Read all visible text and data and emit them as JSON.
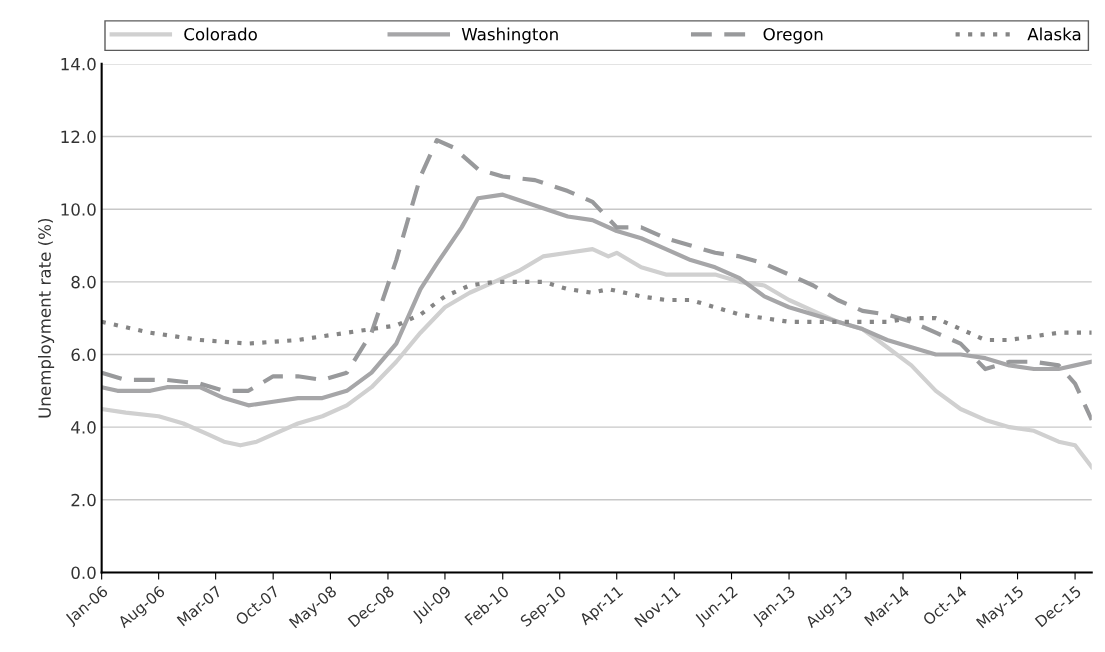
{
  "chart_data": {
    "type": "line",
    "ylabel": "Unemployment rate (%)",
    "xlim": [
      "2006-01",
      "2016-02"
    ],
    "xticks": [
      {
        "value": "2006-01",
        "label": "Jan-06"
      },
      {
        "value": "2006-08",
        "label": "Aug-06"
      },
      {
        "value": "2007-03",
        "label": "Mar-07"
      },
      {
        "value": "2007-10",
        "label": "Oct-07"
      },
      {
        "value": "2008-05",
        "label": "May-08"
      },
      {
        "value": "2008-12",
        "label": "Dec-08"
      },
      {
        "value": "2009-07",
        "label": "Jul-09"
      },
      {
        "value": "2010-02",
        "label": "Feb-10"
      },
      {
        "value": "2010-09",
        "label": "Sep-10"
      },
      {
        "value": "2011-04",
        "label": "Apr-11"
      },
      {
        "value": "2011-11",
        "label": "Nov-11"
      },
      {
        "value": "2012-06",
        "label": "Jun-12"
      },
      {
        "value": "2013-01",
        "label": "Jan-13"
      },
      {
        "value": "2013-08",
        "label": "Aug-13"
      },
      {
        "value": "2014-03",
        "label": "Mar-14"
      },
      {
        "value": "2014-10",
        "label": "Oct-14"
      },
      {
        "value": "2015-05",
        "label": "May-15"
      },
      {
        "value": "2015-12",
        "label": "Dec-15"
      }
    ],
    "ylim": [
      0,
      14
    ],
    "yticks": [
      {
        "value": 0,
        "label": "0.0"
      },
      {
        "value": 2,
        "label": "2.0"
      },
      {
        "value": 4,
        "label": "4.0"
      },
      {
        "value": 6,
        "label": "6.0"
      },
      {
        "value": 8,
        "label": "8.0"
      },
      {
        "value": 10,
        "label": "10.0"
      },
      {
        "value": 12,
        "label": "12.0"
      },
      {
        "value": 14,
        "label": "14.0"
      }
    ],
    "grid": "y",
    "legend": "top",
    "marker": "none",
    "series": [
      {
        "name": "Colorado",
        "color": "#d0d0d0",
        "line_style": "solid",
        "x": [
          "2006-01",
          "2006-04",
          "2006-08",
          "2006-11",
          "2007-02",
          "2007-04",
          "2007-06",
          "2007-08",
          "2007-10",
          "2008-01",
          "2008-04",
          "2008-07",
          "2008-10",
          "2009-01",
          "2009-04",
          "2009-07",
          "2009-10",
          "2010-01",
          "2010-04",
          "2010-07",
          "2010-10",
          "2011-01",
          "2011-03",
          "2011-04",
          "2011-07",
          "2011-10",
          "2012-01",
          "2012-04",
          "2012-07",
          "2012-10",
          "2013-01",
          "2013-04",
          "2013-07",
          "2013-10",
          "2014-01",
          "2014-04",
          "2014-07",
          "2014-10",
          "2015-01",
          "2015-04",
          "2015-07",
          "2015-10",
          "2015-12",
          "2016-02"
        ],
        "values": [
          4.5,
          4.4,
          4.3,
          4.1,
          3.8,
          3.6,
          3.5,
          3.6,
          3.8,
          4.1,
          4.3,
          4.6,
          5.1,
          5.8,
          6.6,
          7.3,
          7.7,
          8.0,
          8.3,
          8.7,
          8.8,
          8.9,
          8.7,
          8.8,
          8.4,
          8.2,
          8.2,
          8.2,
          8.0,
          7.9,
          7.5,
          7.2,
          6.9,
          6.7,
          6.2,
          5.7,
          5.0,
          4.5,
          4.2,
          4.0,
          3.9,
          3.6,
          3.5,
          2.9
        ]
      },
      {
        "name": "Washington",
        "color": "#a6a6a8",
        "line_style": "solid",
        "x": [
          "2006-01",
          "2006-03",
          "2006-07",
          "2006-09",
          "2007-01",
          "2007-04",
          "2007-07",
          "2007-10",
          "2008-01",
          "2008-04",
          "2008-07",
          "2008-10",
          "2009-01",
          "2009-04",
          "2009-06",
          "2009-09",
          "2009-11",
          "2010-02",
          "2010-06",
          "2010-10",
          "2011-01",
          "2011-04",
          "2011-07",
          "2011-10",
          "2012-01",
          "2012-04",
          "2012-07",
          "2012-10",
          "2013-01",
          "2013-04",
          "2013-07",
          "2013-10",
          "2014-01",
          "2014-04",
          "2014-07",
          "2014-10",
          "2015-01",
          "2015-04",
          "2015-07",
          "2015-10",
          "2015-12",
          "2016-02"
        ],
        "values": [
          5.1,
          5.0,
          5.0,
          5.1,
          5.1,
          4.8,
          4.6,
          4.7,
          4.8,
          4.8,
          5.0,
          5.5,
          6.3,
          7.8,
          8.5,
          9.5,
          10.3,
          10.4,
          10.1,
          9.8,
          9.7,
          9.4,
          9.2,
          8.9,
          8.6,
          8.4,
          8.1,
          7.6,
          7.3,
          7.1,
          6.9,
          6.7,
          6.4,
          6.2,
          6.0,
          6.0,
          5.9,
          5.7,
          5.6,
          5.6,
          5.7,
          5.8
        ]
      },
      {
        "name": "Oregon",
        "color": "#98999b",
        "line_style": "dashed",
        "x": [
          "2006-01",
          "2006-04",
          "2006-09",
          "2007-01",
          "2007-04",
          "2007-07",
          "2007-10",
          "2008-01",
          "2008-04",
          "2008-07",
          "2008-10",
          "2009-01",
          "2009-04",
          "2009-06",
          "2009-08",
          "2009-11",
          "2010-02",
          "2010-06",
          "2010-10",
          "2011-01",
          "2011-04",
          "2011-07",
          "2011-10",
          "2012-01",
          "2012-04",
          "2012-07",
          "2012-10",
          "2013-01",
          "2013-04",
          "2013-07",
          "2013-10",
          "2014-01",
          "2014-04",
          "2014-07",
          "2014-10",
          "2015-01",
          "2015-04",
          "2015-07",
          "2015-10",
          "2015-12",
          "2016-02"
        ],
        "values": [
          5.5,
          5.3,
          5.3,
          5.2,
          5.0,
          5.0,
          5.4,
          5.4,
          5.3,
          5.5,
          6.6,
          8.6,
          10.9,
          11.9,
          11.7,
          11.1,
          10.9,
          10.8,
          10.5,
          10.2,
          9.5,
          9.5,
          9.2,
          9.0,
          8.8,
          8.7,
          8.5,
          8.2,
          7.9,
          7.5,
          7.2,
          7.1,
          6.9,
          6.6,
          6.3,
          5.6,
          5.8,
          5.8,
          5.7,
          5.2,
          4.2
        ]
      },
      {
        "name": "Alaska",
        "color": "#858585",
        "line_style": "dotted",
        "x": [
          "2006-01",
          "2006-07",
          "2007-01",
          "2007-07",
          "2008-01",
          "2008-07",
          "2009-01",
          "2009-04",
          "2009-07",
          "2009-10",
          "2010-01",
          "2010-07",
          "2010-10",
          "2011-01",
          "2011-03",
          "2011-07",
          "2011-10",
          "2012-01",
          "2012-04",
          "2012-07",
          "2012-10",
          "2013-01",
          "2013-07",
          "2014-01",
          "2014-04",
          "2014-07",
          "2014-10",
          "2015-01",
          "2015-04",
          "2015-07",
          "2015-10",
          "2016-02"
        ],
        "values": [
          6.9,
          6.6,
          6.4,
          6.3,
          6.4,
          6.6,
          6.8,
          7.1,
          7.6,
          7.9,
          8.0,
          8.0,
          7.8,
          7.7,
          7.8,
          7.6,
          7.5,
          7.5,
          7.3,
          7.1,
          7.0,
          6.9,
          6.9,
          6.9,
          7.0,
          7.0,
          6.7,
          6.4,
          6.4,
          6.5,
          6.6,
          6.6
        ]
      }
    ]
  }
}
